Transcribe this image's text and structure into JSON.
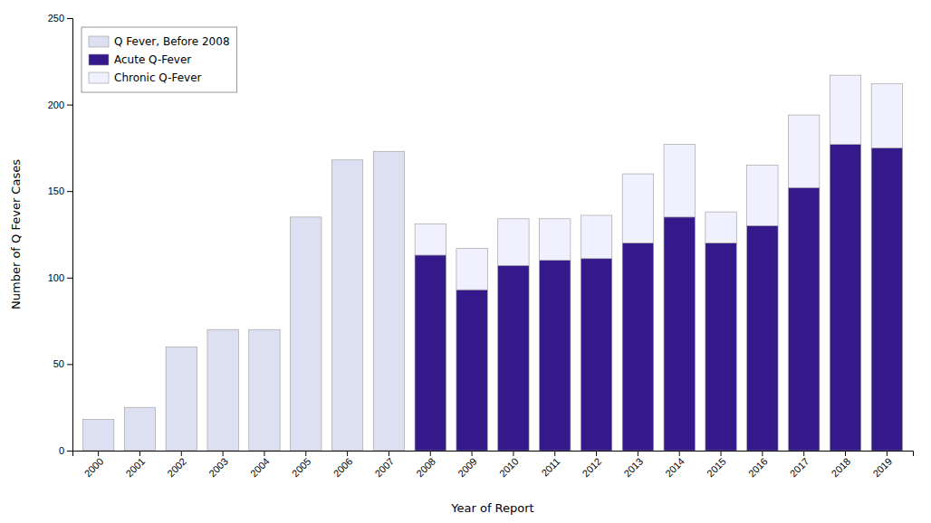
{
  "chart_data": {
    "type": "bar",
    "stacked": true,
    "categories": [
      "2000",
      "2001",
      "2002",
      "2003",
      "2004",
      "2005",
      "2006",
      "2007",
      "2008",
      "2009",
      "2010",
      "2011",
      "2012",
      "2013",
      "2014",
      "2015",
      "2016",
      "2017",
      "2018",
      "2019"
    ],
    "series": [
      {
        "name": "Q Fever, Before 2008",
        "color": "#dce0f0",
        "values": [
          18,
          25,
          60,
          70,
          70,
          135,
          168,
          173,
          0,
          0,
          0,
          0,
          0,
          0,
          0,
          0,
          0,
          0,
          0,
          0
        ]
      },
      {
        "name": "Acute Q-Fever",
        "color": "#35198a",
        "values": [
          0,
          0,
          0,
          0,
          0,
          0,
          0,
          0,
          113,
          93,
          107,
          110,
          111,
          120,
          135,
          120,
          130,
          152,
          177,
          175
        ]
      },
      {
        "name": "Chronic Q-Fever",
        "color": "#f0f0ff",
        "values": [
          0,
          0,
          0,
          0,
          0,
          0,
          0,
          0,
          18,
          24,
          27,
          24,
          25,
          40,
          42,
          18,
          35,
          42,
          40,
          37
        ]
      }
    ],
    "xlabel": "Year of Report",
    "ylabel": "Number of Q Fever Cases",
    "ylim": [
      0,
      250
    ],
    "yticks": [
      0,
      50,
      100,
      150,
      200,
      250
    ],
    "grid": false,
    "legend": "upper left"
  }
}
